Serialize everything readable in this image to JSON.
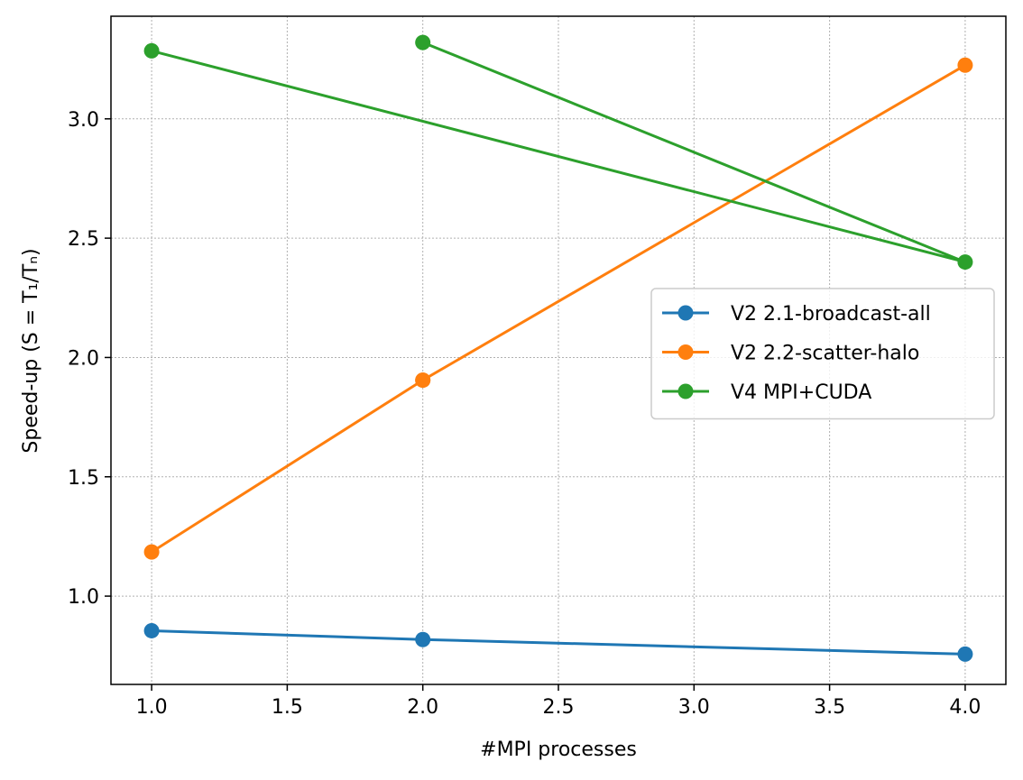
{
  "chart_data": {
    "type": "line",
    "title": "",
    "xlabel": "#MPI processes",
    "ylabel": "Speed-up (S = T₁/Tₙ)",
    "xlim": [
      0.85,
      4.15
    ],
    "ylim": [
      0.63,
      3.43
    ],
    "xticks": [
      1.0,
      1.5,
      2.0,
      2.5,
      3.0,
      3.5,
      4.0
    ],
    "xtick_labels": [
      "1.0",
      "1.5",
      "2.0",
      "2.5",
      "3.0",
      "3.5",
      "4.0"
    ],
    "yticks": [
      1.0,
      1.5,
      2.0,
      2.5,
      3.0
    ],
    "ytick_labels": [
      "1.0",
      "1.5",
      "2.0",
      "2.5",
      "3.0"
    ],
    "grid": true,
    "legend_position": "center-right",
    "series": [
      {
        "name": "V2 2.1-broadcast-all",
        "color": "#1f77b4",
        "x": [
          1,
          2,
          4
        ],
        "y": [
          0.855,
          0.818,
          0.757
        ]
      },
      {
        "name": "V2 2.2-scatter-halo",
        "color": "#ff7f0e",
        "x": [
          1,
          2,
          4,
          2
        ],
        "y": [
          1.185,
          1.905,
          3.225,
          1.905
        ]
      },
      {
        "name": "V4 MPI+CUDA",
        "color": "#2ca02c",
        "x": [
          1,
          4,
          2
        ],
        "y": [
          3.285,
          2.4,
          3.32
        ]
      }
    ]
  }
}
